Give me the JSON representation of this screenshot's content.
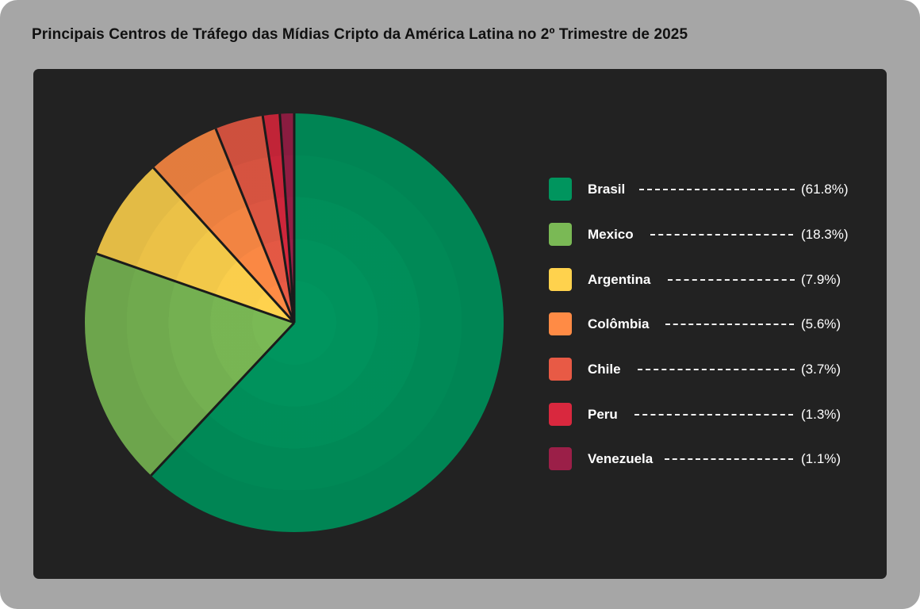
{
  "title": "Principais Centros de Tráfego das Mídias Cripto da América Latina no 2º Trimestre de 2025",
  "chart_data": {
    "type": "pie",
    "title": "Principais Centros de Tráfego das Mídias Cripto da América Latina no 2º Trimestre de 2025",
    "start_angle": "12 o'clock, clockwise",
    "legend_position": "right",
    "slices": [
      {
        "label": "Brasil",
        "value": 61.8,
        "pct_label": "(61.8%)",
        "color": "#00955e"
      },
      {
        "label": "Mexico",
        "value": 18.3,
        "pct_label": "(18.3%)",
        "color": "#7ab955"
      },
      {
        "label": "Argentina",
        "value": 7.9,
        "pct_label": "(7.9%)",
        "color": "#ffd24d"
      },
      {
        "label": "Colômbia",
        "value": 5.6,
        "pct_label": "(5.6%)",
        "color": "#ff8b45"
      },
      {
        "label": "Chile",
        "value": 3.7,
        "pct_label": "(3.7%)",
        "color": "#e85a45"
      },
      {
        "label": "Peru",
        "value": 1.3,
        "pct_label": "(1.3%)",
        "color": "#d9283e"
      },
      {
        "label": "Venezuela",
        "value": 1.1,
        "pct_label": "(1.1%)",
        "color": "#9b1f48"
      }
    ]
  }
}
